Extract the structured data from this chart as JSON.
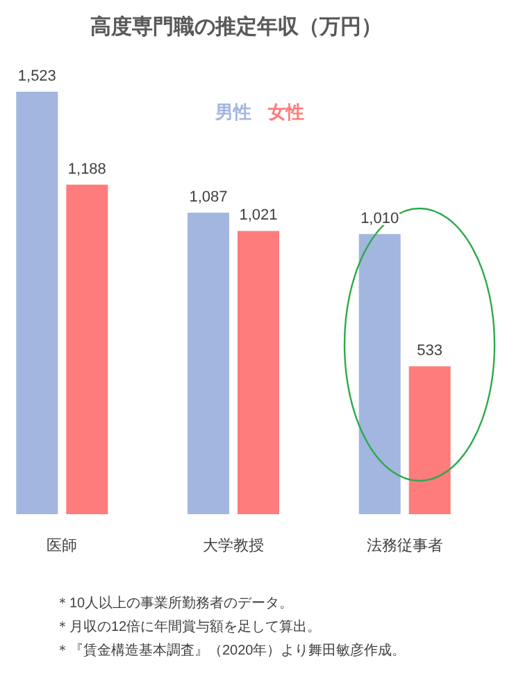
{
  "chart_data": {
    "type": "bar",
    "title": "高度専門職の推定年収（万円）",
    "categories": [
      "医師",
      "大学教授",
      "法務従事者"
    ],
    "series": [
      {
        "name": "男性",
        "color": "#a3b6e0",
        "values": [
          1523,
          1087,
          1010
        ],
        "value_labels": [
          "1,523",
          "1,087",
          "1,010"
        ]
      },
      {
        "name": "女性",
        "color": "#ff7c7c",
        "values": [
          1188,
          1021,
          533
        ],
        "value_labels": [
          "1,188",
          "1,021",
          "533"
        ]
      }
    ],
    "legend": "top",
    "grid": false,
    "annotations": [
      "＊10人以上の事業所勤務者のデータ。",
      "＊月収の12倍に年間賞与額を足して算出。",
      "＊『賃金構造基本調査』（2020年）より舞田敏彦作成。"
    ]
  }
}
